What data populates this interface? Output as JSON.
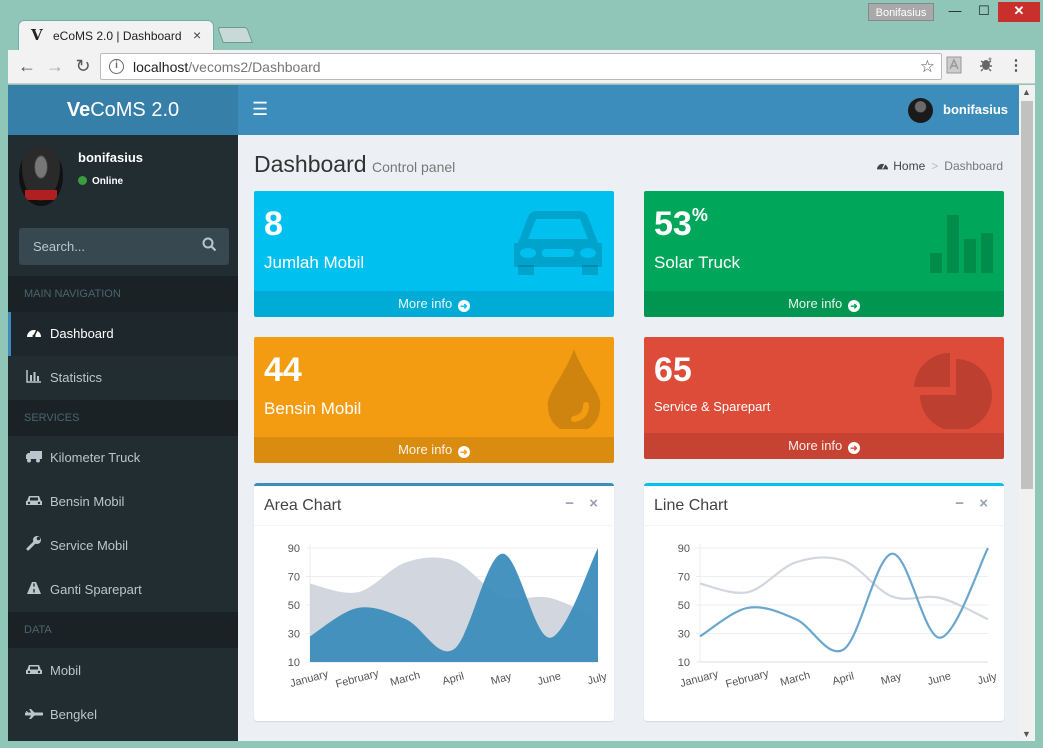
{
  "window": {
    "user": "Bonifasius",
    "min_glyph": "—",
    "max_glyph": "☐",
    "close_glyph": "✕"
  },
  "tab": {
    "favicon": "V",
    "title": "eCoMS 2.0 | Dashboard",
    "close_glyph": "×"
  },
  "toolbar": {
    "url_host": "localhost",
    "url_path": "/vecoms2/Dashboard",
    "info_glyph": "i",
    "star_glyph": "☆"
  },
  "brand": {
    "bold": "Ve",
    "rest": "CoMS 2.0"
  },
  "navbar": {
    "username": "bonifasius"
  },
  "user_panel": {
    "name": "bonifasius",
    "status": "Online"
  },
  "search": {
    "placeholder": "Search..."
  },
  "sidebar": {
    "main_header": "MAIN NAVIGATION",
    "dashboard": "Dashboard",
    "statistics": "Statistics",
    "services_header": "SERVICES",
    "kilometer_truck": "Kilometer Truck",
    "bensin_mobil": "Bensin Mobil",
    "service_mobil": "Service Mobil",
    "ganti_sparepart": "Ganti Sparepart",
    "data_header": "DATA",
    "mobil": "Mobil",
    "bengkel": "Bengkel"
  },
  "page": {
    "title": "Dashboard",
    "subtitle": "Control panel",
    "crumb_home": "Home",
    "crumb_sep": ">",
    "crumb_current": "Dashboard"
  },
  "stats": {
    "box1": {
      "value": "8",
      "label": "Jumlah Mobil",
      "more": "More info"
    },
    "box2": {
      "value": "53",
      "unit": "%",
      "label": "Solar Truck",
      "more": "More info"
    },
    "box3": {
      "value": "44",
      "label": "Bensin Mobil",
      "more": "More info"
    },
    "box4": {
      "value": "65",
      "label": "Service & Sparepart",
      "more": "More info"
    }
  },
  "colors": {
    "aqua": "#00c0ef",
    "green": "#00a65a",
    "yellow": "#f39c12",
    "red": "#dd4b39",
    "primary": "#3c8dbc"
  },
  "chart_data": [
    {
      "type": "area",
      "title": "Area Chart",
      "categories": [
        "January",
        "February",
        "March",
        "April",
        "May",
        "June",
        "July"
      ],
      "yticks": [
        10,
        30,
        50,
        70,
        90
      ],
      "ylim": [
        10,
        90
      ],
      "series": [
        {
          "values": [
            65,
            59,
            80,
            81,
            56,
            55,
            40
          ],
          "color": "#d2d6de"
        },
        {
          "values": [
            28,
            48,
            40,
            19,
            86,
            27,
            90
          ],
          "color": "#3c8dbc"
        }
      ]
    },
    {
      "type": "line",
      "title": "Line Chart",
      "categories": [
        "January",
        "February",
        "March",
        "April",
        "May",
        "June",
        "July"
      ],
      "yticks": [
        10,
        30,
        50,
        70,
        90
      ],
      "ylim": [
        10,
        90
      ],
      "series": [
        {
          "values": [
            65,
            59,
            80,
            81,
            56,
            55,
            40
          ],
          "color": "#d2d6de"
        },
        {
          "values": [
            28,
            48,
            40,
            19,
            86,
            27,
            90
          ],
          "color": "#6aa7cf"
        }
      ]
    }
  ]
}
